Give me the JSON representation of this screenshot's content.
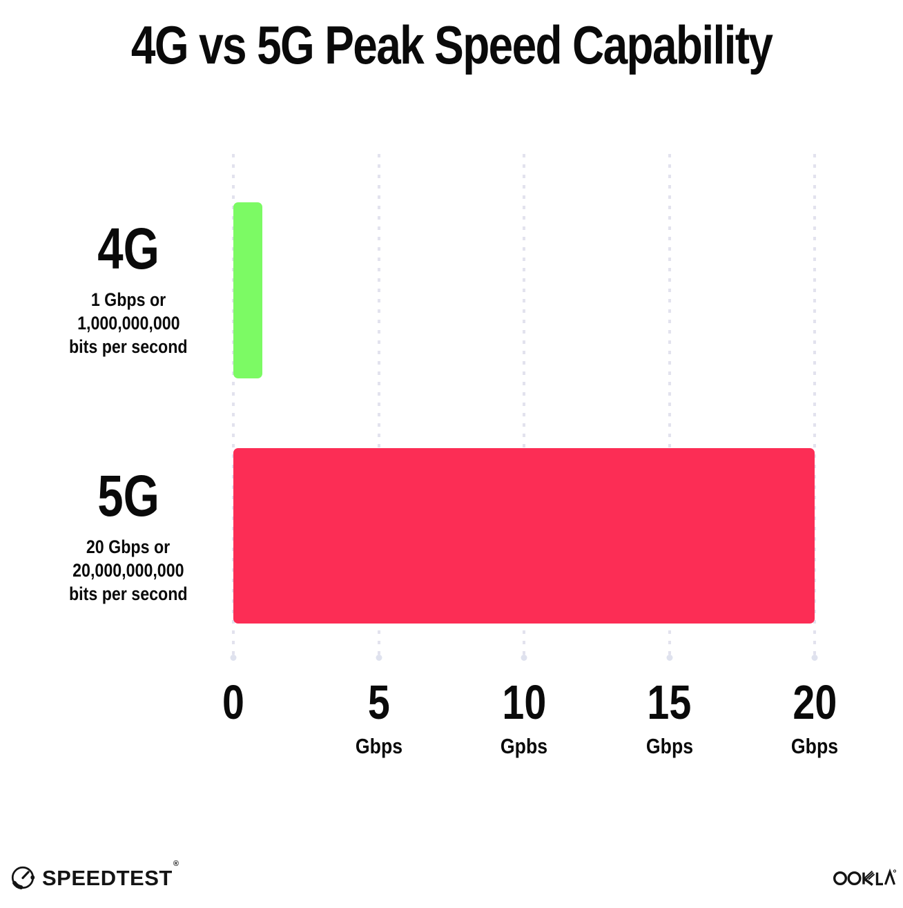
{
  "title": "4G vs 5G Peak Speed Capability",
  "colors": {
    "bar_4g": "#7CFA64",
    "bar_5g": "#FC2D55",
    "gridline": "#E2E2EE",
    "text": "#0A0A0A"
  },
  "chart_data": {
    "type": "bar",
    "orientation": "horizontal",
    "title": "4G vs 5G Peak Speed Capability",
    "categories": [
      "4G",
      "5G"
    ],
    "values": [
      1,
      20
    ],
    "unit": "Gbps",
    "xlim": [
      0,
      20
    ],
    "grid": "dotted vertical gridlines at each tick, terminal dot at bottom",
    "legend": "none",
    "rows": [
      {
        "label": "4G",
        "value": 1,
        "color": "#7CFA64",
        "sublabel": [
          "1 Gbps or",
          "1,000,000,000",
          "bits per second"
        ]
      },
      {
        "label": "5G",
        "value": 20,
        "color": "#FC2D55",
        "sublabel": [
          "20 Gbps or",
          "20,000,000,000",
          "bits per second"
        ]
      }
    ],
    "x_ticks": [
      {
        "value": 0,
        "number": "0",
        "unit": ""
      },
      {
        "value": 5,
        "number": "5",
        "unit": "Gbps"
      },
      {
        "value": 10,
        "number": "10",
        "unit": "Gpbs"
      },
      {
        "value": 15,
        "number": "15",
        "unit": "Gbps"
      },
      {
        "value": 20,
        "number": "20",
        "unit": "Gbps"
      }
    ]
  },
  "footer": {
    "speedtest_label": "SPEEDTEST",
    "speedtest_trademark": "®",
    "ookla_label": "OOKLA",
    "ookla_trademark": "®"
  }
}
